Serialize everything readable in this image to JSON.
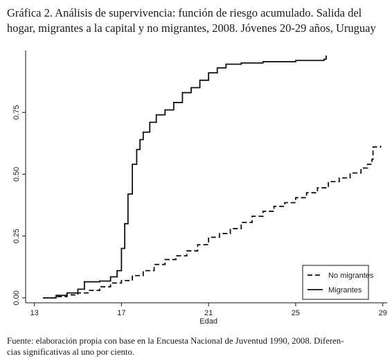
{
  "caption": {
    "line1": "Gráfica 2. Análisis de supervivencia: función de riesgo acumulado. Salida del",
    "line2": "hogar, migrantes a la capital y no migrantes, 2008. Jóvenes 20-29 años, Uruguay"
  },
  "footnote": {
    "line1": "Fuente: elaboración propia con base en la Encuesta Nacional de Juventud 1990, 2008. Diferen-",
    "line2": "cias significativas al uno por ciento."
  },
  "chart_data": {
    "type": "line",
    "xlabel": "Edad",
    "ylabel": "",
    "xlim": [
      12.6,
      29.2
    ],
    "ylim": [
      -0.02,
      1.0
    ],
    "x_ticks": [
      13,
      17,
      21,
      25,
      29
    ],
    "x_tick_labels": [
      "13",
      "17",
      "21",
      "25",
      "29"
    ],
    "y_ticks": [
      0,
      0.25,
      0.5,
      0.75
    ],
    "y_tick_labels": [
      "0.00",
      "0.25",
      "0.50",
      "0.75"
    ],
    "grid": false,
    "legend_position": "bottom-right",
    "series": [
      {
        "name": "No migrantes",
        "style": "dashed",
        "color": "#111111",
        "points": [
          [
            13.4,
            0.0
          ],
          [
            14.0,
            0.005
          ],
          [
            14.5,
            0.012
          ],
          [
            15.0,
            0.02
          ],
          [
            15.5,
            0.03
          ],
          [
            16.0,
            0.045
          ],
          [
            16.5,
            0.06
          ],
          [
            17.0,
            0.07
          ],
          [
            17.5,
            0.09
          ],
          [
            18.0,
            0.11
          ],
          [
            18.5,
            0.135
          ],
          [
            19.0,
            0.155
          ],
          [
            19.5,
            0.17
          ],
          [
            20.0,
            0.19
          ],
          [
            20.5,
            0.215
          ],
          [
            21.0,
            0.245
          ],
          [
            21.5,
            0.26
          ],
          [
            22.0,
            0.28
          ],
          [
            22.5,
            0.305
          ],
          [
            23.0,
            0.33
          ],
          [
            23.5,
            0.35
          ],
          [
            24.0,
            0.37
          ],
          [
            24.5,
            0.385
          ],
          [
            25.0,
            0.405
          ],
          [
            25.5,
            0.425
          ],
          [
            26.0,
            0.445
          ],
          [
            26.5,
            0.47
          ],
          [
            27.0,
            0.485
          ],
          [
            27.5,
            0.505
          ],
          [
            28.0,
            0.525
          ],
          [
            28.3,
            0.54
          ],
          [
            28.5,
            0.56
          ],
          [
            28.55,
            0.61
          ],
          [
            28.9,
            0.615
          ]
        ]
      },
      {
        "name": "Migrantes",
        "style": "solid",
        "color": "#111111",
        "points": [
          [
            13.4,
            0.0
          ],
          [
            14.0,
            0.01
          ],
          [
            14.5,
            0.02
          ],
          [
            15.0,
            0.035
          ],
          [
            15.3,
            0.065
          ],
          [
            16.0,
            0.068
          ],
          [
            16.5,
            0.085
          ],
          [
            16.8,
            0.11
          ],
          [
            17.0,
            0.2
          ],
          [
            17.15,
            0.3
          ],
          [
            17.3,
            0.42
          ],
          [
            17.5,
            0.54
          ],
          [
            17.7,
            0.6
          ],
          [
            17.85,
            0.64
          ],
          [
            18.0,
            0.67
          ],
          [
            18.3,
            0.71
          ],
          [
            18.6,
            0.74
          ],
          [
            19.0,
            0.76
          ],
          [
            19.4,
            0.79
          ],
          [
            19.8,
            0.83
          ],
          [
            20.2,
            0.85
          ],
          [
            20.6,
            0.88
          ],
          [
            21.0,
            0.91
          ],
          [
            21.4,
            0.93
          ],
          [
            21.8,
            0.945
          ],
          [
            22.5,
            0.95
          ],
          [
            23.5,
            0.955
          ],
          [
            25.0,
            0.96
          ],
          [
            26.0,
            0.96
          ],
          [
            26.3,
            0.965
          ],
          [
            26.4,
            0.98
          ]
        ]
      }
    ]
  }
}
